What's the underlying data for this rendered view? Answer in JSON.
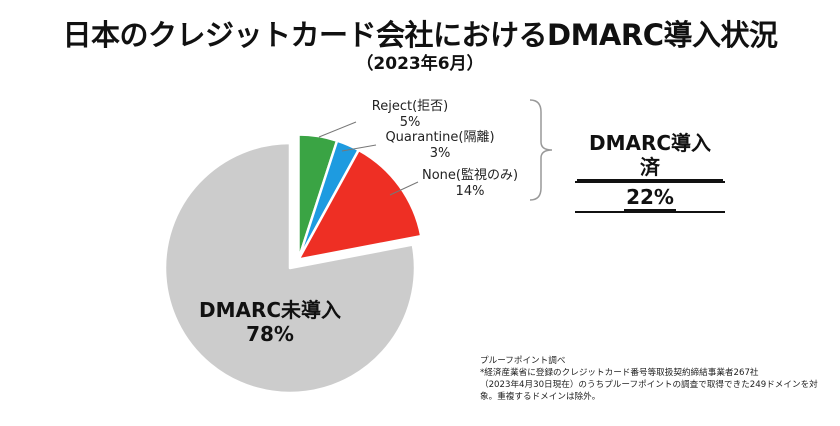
{
  "title": "日本のクレジットカード会社におけるDMARC導入状況",
  "subtitle": "（2023年6月）",
  "labels": {
    "reject_name": "Reject(拒否)",
    "reject_pct": "5%",
    "quarantine_name": "Quarantine(隔離)",
    "quarantine_pct": "3%",
    "none_name": "None(監視のみ)",
    "none_pct": "14%",
    "not_adopted_name": "DMARC未導入",
    "not_adopted_pct": "78%",
    "adopted_name": "DMARC導入済",
    "adopted_pct": "22%"
  },
  "note": {
    "line1": "プルーフポイント調べ",
    "line2": "*経済産業省に登録のクレジットカード番号等取扱契約締結事業者267社",
    "line3": "（2023年4月30日現在）のうちプルーフポイントの調査で取得できた249ドメインを対",
    "line4": "象。重複するドメインは除外。"
  },
  "chart_data": {
    "type": "pie",
    "title": "日本のクレジットカード会社におけるDMARC導入状況",
    "subtitle": "（2023年6月）",
    "slices": [
      {
        "label": "Reject(拒否)",
        "value": 5,
        "color": "#3aa444"
      },
      {
        "label": "Quarantine(隔離)",
        "value": 3,
        "color": "#1e9be0"
      },
      {
        "label": "None(監視のみ)",
        "value": 14,
        "color": "#ee2f24"
      },
      {
        "label": "DMARC未導入",
        "value": 78,
        "color": "#cccccc"
      }
    ],
    "group": {
      "label": "DMARC導入済",
      "value": 22,
      "members": [
        "Reject(拒否)",
        "Quarantine(隔離)",
        "None(監視のみ)"
      ]
    }
  }
}
